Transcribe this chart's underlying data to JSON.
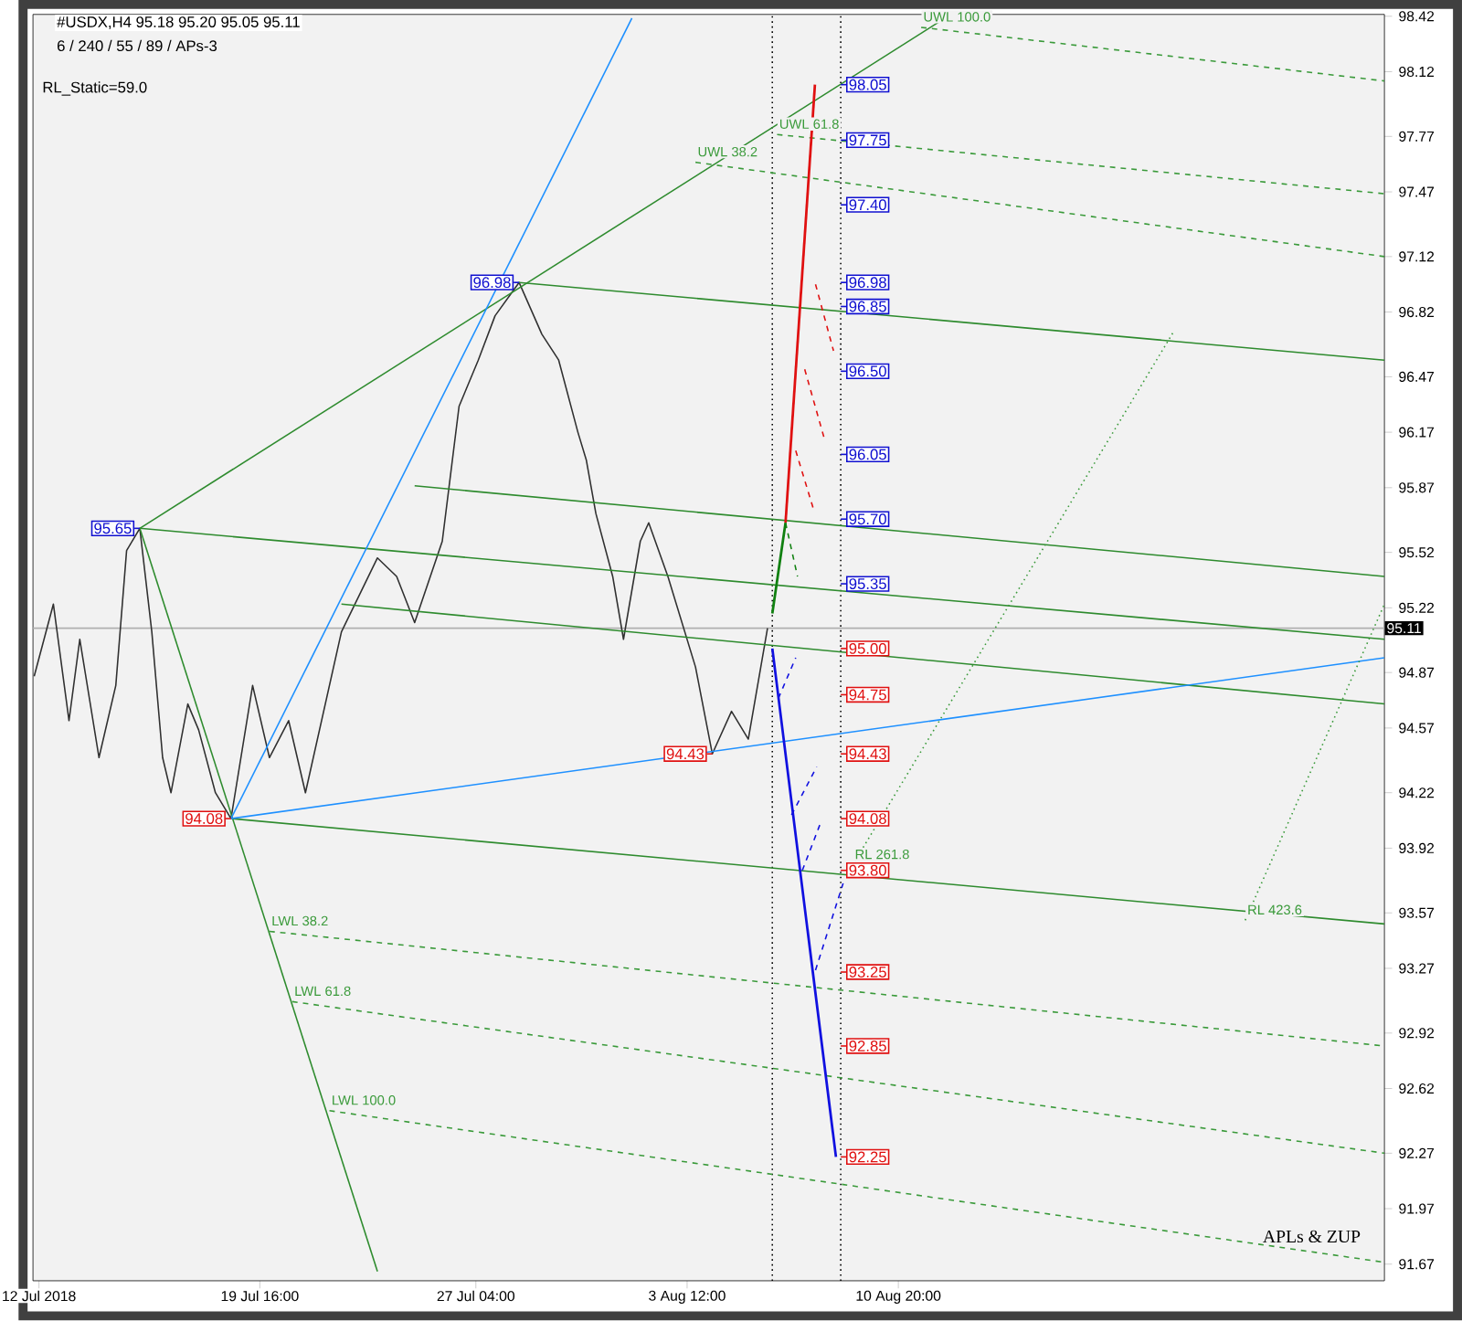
{
  "chart_data": {
    "type": "line",
    "title": "#USDX,H4  95.18 95.20 95.05 95.11",
    "subtitle": "6 / 240 / 55 / 89 / APs-3",
    "xlim": [
      "2018-07-11T19:00",
      "2018-08-27T17:00"
    ],
    "ylim": [
      91.58,
      98.43
    ],
    "xticks": [
      {
        "value": "2018-07-12T00:00",
        "label": "12 Jul 2018"
      },
      {
        "value": "2018-07-19T16:00",
        "label": "19 Jul 16:00"
      },
      {
        "value": "2018-07-27T04:00",
        "label": "27 Jul 04:00"
      },
      {
        "value": "2018-08-03T12:00",
        "label": "3 Aug 12:00"
      },
      {
        "value": "2018-08-10T20:00",
        "label": "10 Aug 20:00"
      }
    ],
    "yticks": [
      98.42,
      98.12,
      97.77,
      97.47,
      97.12,
      96.82,
      96.47,
      96.17,
      95.87,
      95.52,
      95.22,
      94.87,
      94.57,
      94.22,
      93.92,
      93.57,
      93.27,
      92.92,
      92.62,
      92.27,
      91.97,
      91.67
    ],
    "marker": "none",
    "series": [
      {
        "color": "#303030",
        "line_style": "solid",
        "x": [
          "2018-07-11T20:00",
          "2018-07-12T12:00",
          "2018-07-13T01:00",
          "2018-07-13T10:00",
          "2018-07-14T02:00",
          "2018-07-14T16:00",
          "2018-07-15T01:00",
          "2018-07-15T12:00",
          "2018-07-15T22:00",
          "2018-07-16T07:00",
          "2018-07-16T14:00",
          "2018-07-17T04:00",
          "2018-07-17T13:00",
          "2018-07-18T03:00",
          "2018-07-18T16:00",
          "2018-07-19T10:00",
          "2018-07-20T00:00",
          "2018-07-20T16:00",
          "2018-07-21T06:00",
          "2018-07-22T12:00",
          "2018-07-23T18:00",
          "2018-07-24T10:00",
          "2018-07-25T01:00",
          "2018-07-26T00:00",
          "2018-07-26T14:00",
          "2018-07-27T06:00",
          "2018-07-27T20:00",
          "2018-07-28T16:00",
          "2018-07-29T11:00",
          "2018-07-30T01:00",
          "2018-07-30T17:00",
          "2018-07-31T00:00",
          "2018-07-31T08:00",
          "2018-07-31T22:00",
          "2018-08-01T07:00",
          "2018-08-01T21:00",
          "2018-08-02T04:00",
          "2018-08-02T20:00",
          "2018-08-03T19:00",
          "2018-08-04T09:00",
          "2018-08-05T01:00",
          "2018-08-05T15:00",
          "2018-08-06T07:00"
        ],
        "values": [
          94.85,
          95.24,
          94.61,
          95.05,
          94.41,
          94.8,
          95.53,
          95.65,
          95.09,
          94.41,
          94.22,
          94.7,
          94.56,
          94.22,
          94.08,
          94.8,
          94.41,
          94.61,
          94.22,
          95.09,
          95.49,
          95.39,
          95.14,
          95.58,
          96.31,
          96.56,
          96.8,
          96.98,
          96.7,
          96.56,
          96.17,
          96.02,
          95.73,
          95.39,
          95.05,
          95.58,
          95.68,
          95.39,
          94.9,
          94.43,
          94.66,
          94.51,
          95.11
        ]
      },
      {
        "color": "#2e8b2e",
        "line_style": "solid",
        "x": [
          "2018-07-15T12:00",
          "2018-07-23T18:00"
        ],
        "values": [
          95.65,
          91.63
        ]
      },
      {
        "color": "#2e8b2e",
        "line_style": "solid",
        "x": [
          "2018-07-15T12:00",
          "2018-08-12T06:00"
        ],
        "values": [
          95.65,
          98.39
        ]
      },
      {
        "color": "#2e8b2e",
        "line_style": "solid",
        "x": [
          "2018-07-15T12:00",
          "2018-08-27T17:00"
        ],
        "values": [
          95.65,
          95.05
        ]
      },
      {
        "color": "#2e8b2e",
        "line_style": "solid",
        "x": [
          "2018-07-18T16:00",
          "2018-08-27T17:00"
        ],
        "values": [
          94.08,
          93.51
        ]
      },
      {
        "color": "#2e8b2e",
        "line_style": "solid",
        "x": [
          "2018-07-28T16:00",
          "2018-08-27T17:00"
        ],
        "values": [
          96.98,
          96.56
        ]
      },
      {
        "color": "#2e8b2e",
        "line_style": "solid",
        "x": [
          "2018-07-25T01:00",
          "2018-08-27T17:00"
        ],
        "values": [
          95.88,
          95.39
        ]
      },
      {
        "color": "#2e8b2e",
        "line_style": "solid",
        "x": [
          "2018-07-22T12:00",
          "2018-08-27T17:00"
        ],
        "values": [
          95.24,
          94.7
        ]
      },
      {
        "color": "#1e90ff",
        "line_style": "solid",
        "x": [
          "2018-07-18T16:00",
          "2018-08-27T17:00"
        ],
        "values": [
          94.08,
          94.95
        ]
      },
      {
        "color": "#1e90ff",
        "line_style": "solid",
        "x": [
          "2018-07-18T16:00",
          "2018-08-01T14:00"
        ],
        "values": [
          94.08,
          98.41
        ]
      },
      {
        "name": "LWL 38.2",
        "color": "#3a9a3a",
        "line_style": "dashed",
        "x": [
          "2018-07-20T00:00",
          "2018-08-27T17:00"
        ],
        "values": [
          93.47,
          92.85
        ]
      },
      {
        "name": "LWL 61.8",
        "color": "#3a9a3a",
        "line_style": "dashed",
        "x": [
          "2018-07-20T19:00",
          "2018-08-27T17:00"
        ],
        "values": [
          93.09,
          92.27
        ]
      },
      {
        "name": "LWL 100.0",
        "color": "#3a9a3a",
        "line_style": "dashed",
        "x": [
          "2018-07-22T02:00",
          "2018-08-27T17:00"
        ],
        "values": [
          92.5,
          91.68
        ]
      },
      {
        "name": "UWL 38.2",
        "color": "#3a9a3a",
        "line_style": "dashed",
        "x": [
          "2018-08-03T19:00",
          "2018-08-27T17:00"
        ],
        "values": [
          97.63,
          97.12
        ]
      },
      {
        "name": "UWL 61.8",
        "color": "#3a9a3a",
        "line_style": "dashed",
        "x": [
          "2018-08-06T15:00",
          "2018-08-27T17:00"
        ],
        "values": [
          97.78,
          97.46
        ]
      },
      {
        "name": "UWL 100.0",
        "color": "#3a9a3a",
        "line_style": "dashed",
        "x": [
          "2018-08-11T15:00",
          "2018-08-27T17:00"
        ],
        "values": [
          98.36,
          98.07
        ]
      },
      {
        "name": "RL 261.8",
        "color": "#3a9a3a",
        "line_style": "dotted",
        "x": [
          "2018-08-09T06:00",
          "2018-08-20T09:00"
        ],
        "values": [
          93.83,
          96.71
        ]
      },
      {
        "name": "RL 423.6",
        "color": "#3a9a3a",
        "line_style": "dotted",
        "x": [
          "2018-08-22T21:00",
          "2018-08-27T17:00"
        ],
        "values": [
          93.53,
          95.24
        ]
      },
      {
        "color": "#e01010",
        "line_style": "solid",
        "x": [
          "2018-08-06T22:00",
          "2018-08-07T22:30"
        ],
        "values": [
          95.68,
          98.05
        ]
      },
      {
        "color": "#e01010",
        "line_style": "dashed",
        "x": [
          "2018-08-07T23:00",
          "2018-08-08T14:00",
          null,
          "2018-08-07T14:00",
          "2018-08-08T07:00",
          null,
          "2018-08-07T06:30",
          "2018-08-07T21:00"
        ],
        "values": [
          96.97,
          96.61,
          null,
          96.51,
          96.12,
          null,
          96.07,
          95.76
        ]
      },
      {
        "color": "#1010e0",
        "line_style": "solid",
        "x": [
          "2018-08-06T11:00",
          "2018-08-08T16:00"
        ],
        "values": [
          95.0,
          92.25
        ]
      },
      {
        "color": "#1010e0",
        "line_style": "dashed",
        "x": [
          "2018-08-06T16:00",
          "2018-08-07T06:30",
          null,
          "2018-08-07T03:00",
          "2018-08-08T00:00",
          null,
          "2018-08-07T12:00",
          "2018-08-08T04:00",
          null,
          "2018-08-07T23:00",
          "2018-08-08T22:00"
        ],
        "values": [
          94.73,
          94.95,
          null,
          94.1,
          94.36,
          null,
          93.8,
          94.07,
          null,
          93.26,
          93.73
        ]
      },
      {
        "color": "#108010",
        "line_style": "solid",
        "x": [
          "2018-08-06T11:00",
          "2018-08-06T22:00"
        ],
        "values": [
          95.19,
          95.68
        ]
      },
      {
        "color": "#108010",
        "line_style": "dashed",
        "x": [
          "2018-08-06T22:00",
          "2018-08-07T08:00"
        ],
        "values": [
          95.68,
          95.39
        ]
      }
    ],
    "ref_lines": [
      {
        "axis": "x",
        "value": "2018-08-06T11:00",
        "color": "#000000",
        "line_style": "dotted"
      },
      {
        "axis": "x",
        "value": "2018-08-08T20:00",
        "color": "#000000",
        "line_style": "dotted"
      },
      {
        "axis": "y",
        "value": 95.11,
        "label": "95.11",
        "color": "#b0b0b0",
        "line_style": "solid"
      }
    ],
    "annotations": [
      "RL_Static=59.0",
      "APLs & ZUP",
      {
        "text": "95.65",
        "x": "2018-07-15T12:00",
        "y": 95.65
      },
      {
        "text": "96.98",
        "x": "2018-07-28T16:00",
        "y": 96.98
      },
      {
        "text": "94.08",
        "x": "2018-07-18T16:00",
        "y": 94.08
      },
      {
        "text": "94.43",
        "x": "2018-08-04T09:00",
        "y": 94.43
      },
      {
        "text": "98.05",
        "x": "2018-08-08T20:00",
        "y": 98.05
      },
      {
        "text": "97.75",
        "x": "2018-08-08T20:00",
        "y": 97.75
      },
      {
        "text": "97.40",
        "x": "2018-08-08T20:00",
        "y": 97.4
      },
      {
        "text": "96.98",
        "x": "2018-08-08T20:00",
        "y": 96.98
      },
      {
        "text": "96.85",
        "x": "2018-08-08T20:00",
        "y": 96.85
      },
      {
        "text": "96.50",
        "x": "2018-08-08T20:00",
        "y": 96.5
      },
      {
        "text": "96.05",
        "x": "2018-08-08T20:00",
        "y": 96.05
      },
      {
        "text": "95.70",
        "x": "2018-08-08T20:00",
        "y": 95.7
      },
      {
        "text": "95.35",
        "x": "2018-08-08T20:00",
        "y": 95.35
      },
      {
        "text": "95.00",
        "x": "2018-08-08T20:00",
        "y": 95.0
      },
      {
        "text": "94.75",
        "x": "2018-08-08T20:00",
        "y": 94.75
      },
      {
        "text": "94.43",
        "x": "2018-08-08T20:00",
        "y": 94.43
      },
      {
        "text": "94.08",
        "x": "2018-08-08T20:00",
        "y": 94.08
      },
      {
        "text": "93.80",
        "x": "2018-08-08T20:00",
        "y": 93.8
      },
      {
        "text": "93.25",
        "x": "2018-08-08T20:00",
        "y": 93.25
      },
      {
        "text": "92.85",
        "x": "2018-08-08T20:00",
        "y": 92.85
      },
      {
        "text": "92.25",
        "x": "2018-08-08T20:00",
        "y": 92.25
      }
    ]
  }
}
